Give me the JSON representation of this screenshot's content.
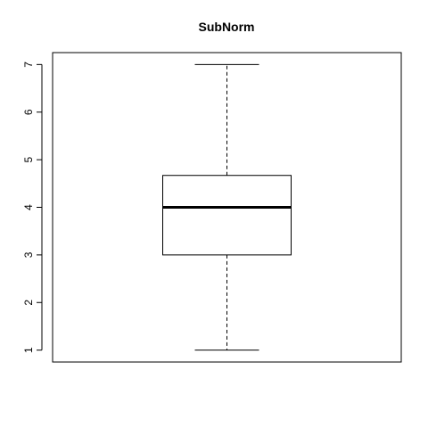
{
  "chart_data": {
    "type": "boxplot",
    "title": "SubNorm",
    "xlabel": "",
    "ylabel": "",
    "ylim": [
      0.75,
      7.25
    ],
    "yticks": [
      1,
      2,
      3,
      4,
      5,
      6,
      7
    ],
    "grid": false,
    "boxes": [
      {
        "min": 1,
        "q1": 3,
        "median": 4,
        "q3": 4.67,
        "max": 7
      }
    ],
    "colors": {
      "stroke": "#000000",
      "background": "#ffffff"
    }
  }
}
